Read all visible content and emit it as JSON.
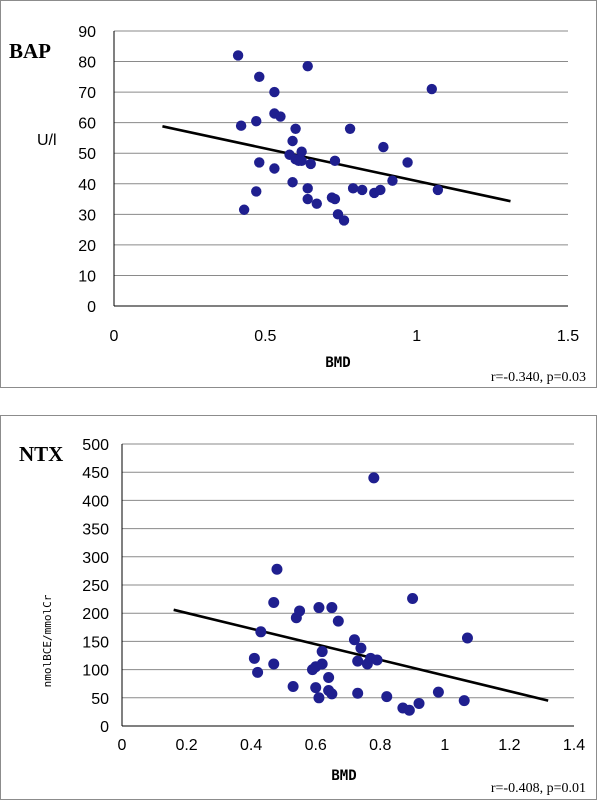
{
  "chart_data": [
    {
      "type": "scatter",
      "title": "BAP",
      "xlabel": "BMD",
      "ylabel": "U/l",
      "xlim": [
        0,
        1.5
      ],
      "ylim": [
        0,
        90
      ],
      "x_ticks": [
        "0",
        "0.5",
        "1",
        "1.5"
      ],
      "y_ticks": [
        "0",
        "10",
        "20",
        "30",
        "40",
        "50",
        "60",
        "70",
        "80",
        "90"
      ],
      "annotation": "r=-0.340, p=0.03",
      "grid": "horizontal",
      "marker_color": "#1f1f8f",
      "trend_line": {
        "x": [
          0.16,
          1.31
        ],
        "y": [
          58.8,
          34.3
        ]
      },
      "points": [
        {
          "x": 0.41,
          "y": 82
        },
        {
          "x": 0.42,
          "y": 59
        },
        {
          "x": 0.43,
          "y": 31.5
        },
        {
          "x": 0.47,
          "y": 60.5
        },
        {
          "x": 0.48,
          "y": 75
        },
        {
          "x": 0.48,
          "y": 47
        },
        {
          "x": 0.47,
          "y": 37.5
        },
        {
          "x": 0.53,
          "y": 70
        },
        {
          "x": 0.53,
          "y": 63
        },
        {
          "x": 0.55,
          "y": 62
        },
        {
          "x": 0.53,
          "y": 45
        },
        {
          "x": 0.58,
          "y": 49.5
        },
        {
          "x": 0.59,
          "y": 54
        },
        {
          "x": 0.6,
          "y": 58
        },
        {
          "x": 0.6,
          "y": 48
        },
        {
          "x": 0.61,
          "y": 47.5
        },
        {
          "x": 0.62,
          "y": 50.5
        },
        {
          "x": 0.62,
          "y": 47.5
        },
        {
          "x": 0.59,
          "y": 40.5
        },
        {
          "x": 0.64,
          "y": 78.5
        },
        {
          "x": 0.65,
          "y": 46.5
        },
        {
          "x": 0.64,
          "y": 38.5
        },
        {
          "x": 0.64,
          "y": 35
        },
        {
          "x": 0.67,
          "y": 33.5
        },
        {
          "x": 0.72,
          "y": 35.5
        },
        {
          "x": 0.73,
          "y": 35
        },
        {
          "x": 0.73,
          "y": 47.5
        },
        {
          "x": 0.74,
          "y": 30
        },
        {
          "x": 0.76,
          "y": 28
        },
        {
          "x": 0.78,
          "y": 58
        },
        {
          "x": 0.79,
          "y": 38.5
        },
        {
          "x": 0.82,
          "y": 38
        },
        {
          "x": 0.86,
          "y": 37
        },
        {
          "x": 0.88,
          "y": 38
        },
        {
          "x": 0.89,
          "y": 52
        },
        {
          "x": 0.92,
          "y": 41
        },
        {
          "x": 0.97,
          "y": 47
        },
        {
          "x": 1.05,
          "y": 71
        },
        {
          "x": 1.07,
          "y": 38
        }
      ]
    },
    {
      "type": "scatter",
      "title": "NTX",
      "xlabel": "BMD",
      "ylabel": "nmolBCE/mmolCr",
      "xlim": [
        0,
        1.4
      ],
      "ylim": [
        0,
        500
      ],
      "x_ticks": [
        "0",
        "0.2",
        "0.4",
        "0.6",
        "0.8",
        "1",
        "1.2",
        "1.4"
      ],
      "y_ticks": [
        "0",
        "50",
        "100",
        "150",
        "200",
        "250",
        "300",
        "350",
        "400",
        "450",
        "500"
      ],
      "annotation": "r=-0.408, p=0.01",
      "grid": "horizontal",
      "marker_color": "#1f1f8f",
      "trend_line": {
        "x": [
          0.16,
          1.32
        ],
        "y": [
          206,
          45
        ]
      },
      "points": [
        {
          "x": 0.41,
          "y": 120
        },
        {
          "x": 0.42,
          "y": 95
        },
        {
          "x": 0.43,
          "y": 167
        },
        {
          "x": 0.47,
          "y": 110
        },
        {
          "x": 0.47,
          "y": 219
        },
        {
          "x": 0.48,
          "y": 278
        },
        {
          "x": 0.53,
          "y": 70
        },
        {
          "x": 0.54,
          "y": 192
        },
        {
          "x": 0.55,
          "y": 204
        },
        {
          "x": 0.59,
          "y": 100
        },
        {
          "x": 0.6,
          "y": 105
        },
        {
          "x": 0.6,
          "y": 68
        },
        {
          "x": 0.61,
          "y": 50
        },
        {
          "x": 0.61,
          "y": 210
        },
        {
          "x": 0.62,
          "y": 110
        },
        {
          "x": 0.62,
          "y": 132
        },
        {
          "x": 0.64,
          "y": 86
        },
        {
          "x": 0.64,
          "y": 63
        },
        {
          "x": 0.65,
          "y": 57
        },
        {
          "x": 0.65,
          "y": 210
        },
        {
          "x": 0.67,
          "y": 186
        },
        {
          "x": 0.72,
          "y": 153
        },
        {
          "x": 0.73,
          "y": 115
        },
        {
          "x": 0.73,
          "y": 58
        },
        {
          "x": 0.74,
          "y": 138
        },
        {
          "x": 0.76,
          "y": 110
        },
        {
          "x": 0.77,
          "y": 120
        },
        {
          "x": 0.78,
          "y": 440
        },
        {
          "x": 0.79,
          "y": 117
        },
        {
          "x": 0.82,
          "y": 52
        },
        {
          "x": 0.87,
          "y": 32
        },
        {
          "x": 0.89,
          "y": 28
        },
        {
          "x": 0.9,
          "y": 226
        },
        {
          "x": 0.92,
          "y": 40
        },
        {
          "x": 0.98,
          "y": 60
        },
        {
          "x": 1.06,
          "y": 45
        },
        {
          "x": 1.07,
          "y": 156
        }
      ]
    }
  ]
}
